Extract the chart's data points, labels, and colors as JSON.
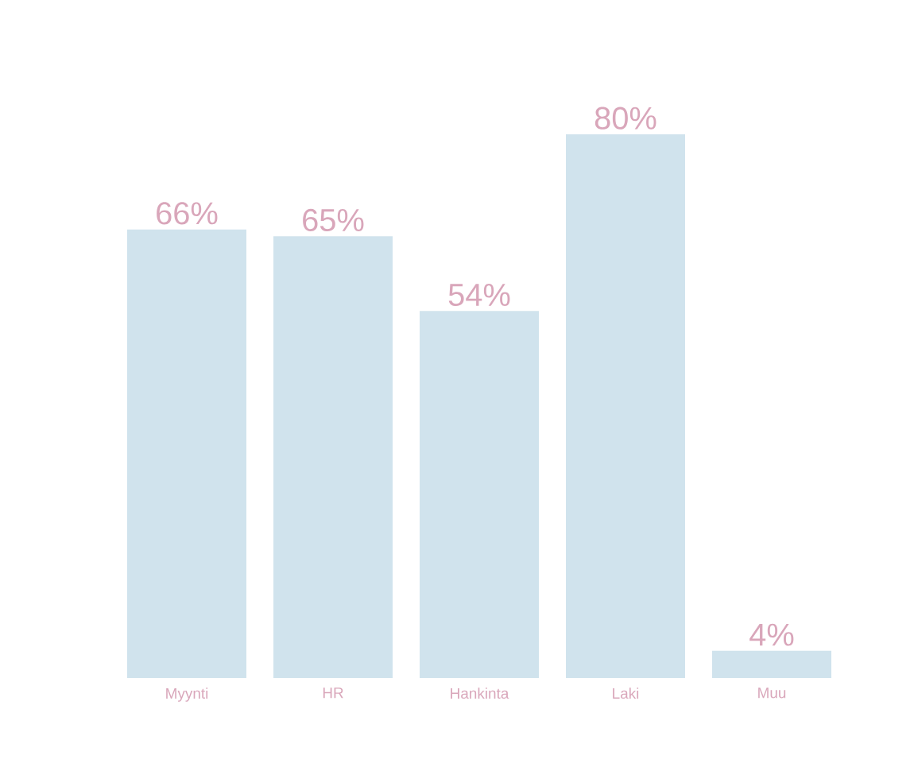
{
  "chart_data": {
    "type": "bar",
    "categories": [
      "Myynti",
      "HR",
      "Hankinta",
      "Laki",
      "Muu"
    ],
    "values": [
      66,
      65,
      54,
      80,
      4
    ],
    "value_labels": [
      "66%",
      "65%",
      "54%",
      "80%",
      "4%"
    ],
    "color": "#d0e3ed"
  }
}
